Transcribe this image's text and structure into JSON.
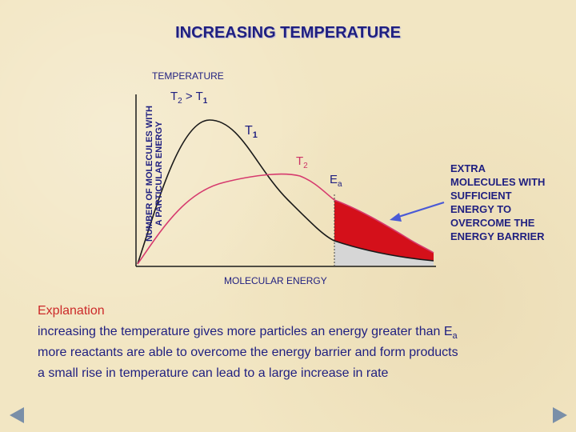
{
  "title": "INCREASING TEMPERATURE",
  "diagram": {
    "temperature_heading": "TEMPERATURE",
    "y_axis_label_line1": "NUMBER OF MOLECULES WITH",
    "y_axis_label_line2": "A PARTICULAR ENERGY",
    "x_axis_label": "MOLECULAR ENERGY",
    "comparison": {
      "a": "T",
      "a_sub": "2",
      "op": " > ",
      "b": "T",
      "b_sub": "1"
    },
    "curve_t1": {
      "label": "T",
      "sub": "1",
      "color": "#1a1a1a"
    },
    "curve_t2": {
      "label": "T",
      "sub": "2",
      "color": "#d63a6e"
    },
    "activation": {
      "label": "E",
      "sub": "a"
    },
    "extra_region_color": "#d4101a",
    "base_region_color": "#d6d6d6",
    "arrow_color": "#4a5ad6",
    "extra_text": [
      "EXTRA",
      "MOLECULES WITH",
      "SUFFICIENT",
      "ENERGY TO",
      "OVERCOME THE",
      "ENERGY BARRIER"
    ]
  },
  "explanation": {
    "heading": "Explanation",
    "line1_text": "increasing the temperature gives more particles an energy greater than E",
    "line1_sub": "a",
    "line2": "more reactants are able to overcome the energy barrier and form products",
    "line3": "a small rise in temperature can lead to a large increase in rate"
  },
  "nav": {
    "prev_icon": "triangle-left",
    "next_icon": "triangle-right",
    "color": "#7a8fa8"
  }
}
